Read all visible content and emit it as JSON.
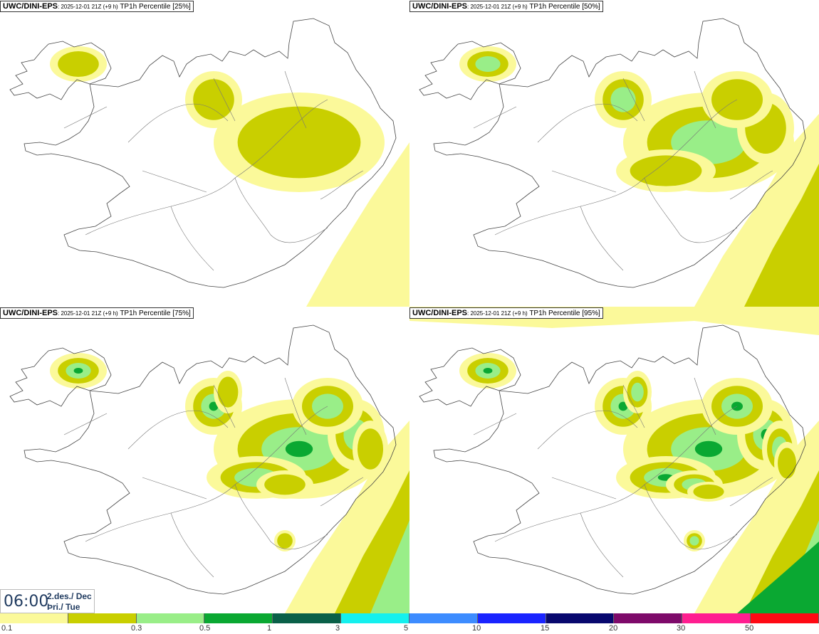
{
  "panels": [
    {
      "source": "UWC/DINI-EPS",
      "run": ": 2025-12-01 21Z (+9 h)",
      "field": " TP1h Percentile [25%]",
      "intensity": 0
    },
    {
      "source": "UWC/DINI-EPS",
      "run": ": 2025-12-01 21Z (+9 h)",
      "field": " TP1h Percentile [50%]",
      "intensity": 1
    },
    {
      "source": "UWC/DINI-EPS",
      "run": ": 2025-12-01 21Z (+9 h)",
      "field": " TP1h Percentile [75%]",
      "intensity": 2
    },
    {
      "source": "UWC/DINI-EPS",
      "run": ": 2025-12-01 21Z (+9 h)",
      "field": " TP1h Percentile [95%]",
      "intensity": 3
    }
  ],
  "valid": {
    "time": "06:00",
    "date_line1": "2.des./ Dec",
    "date_line2": "Þri./ Tue"
  },
  "legend": {
    "labels": [
      "0.1",
      "0.3",
      "0.5",
      "1",
      "3",
      "5",
      "10",
      "15",
      "20",
      "30",
      "50"
    ],
    "colors": [
      "#fbf99a",
      "#c9cf00",
      "#99ee88",
      "#0aa832",
      "#0a6048",
      "#14f0ee",
      "#3d8cff",
      "#1a24ff",
      "#08086e",
      "#7e0a6a",
      "#ff1e90",
      "#ff0a14"
    ]
  }
}
